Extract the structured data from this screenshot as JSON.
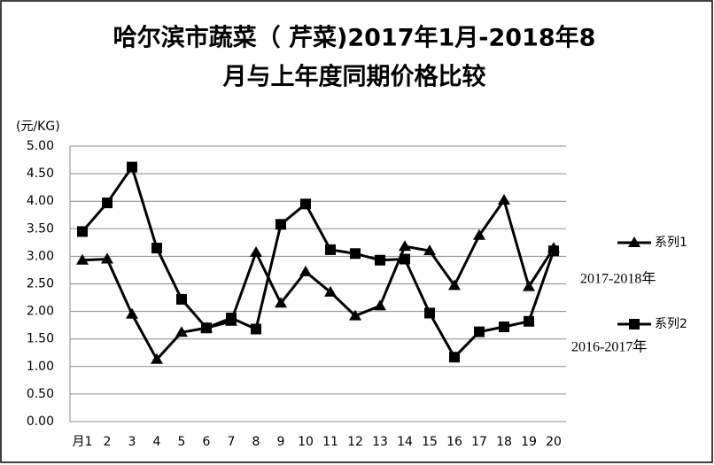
{
  "chart_data": {
    "type": "line",
    "title_lines": [
      "哈尔滨市蔬菜（ 芹菜)2017年1月-2018年8",
      "月与上年度同期价格比较"
    ],
    "y_label": "(元/KG)",
    "categories": [
      "月1",
      "2",
      "3",
      "4",
      "5",
      "6",
      "7",
      "8",
      "9",
      "10",
      "11",
      "12",
      "13",
      "14",
      "15",
      "16",
      "17",
      "18",
      "19",
      "20"
    ],
    "series": [
      {
        "name": "系列1",
        "color": "#000000",
        "marker": "triangle",
        "values": [
          2.93,
          2.95,
          1.95,
          1.13,
          1.62,
          1.7,
          1.82,
          3.07,
          2.15,
          2.72,
          2.35,
          1.92,
          2.1,
          3.18,
          3.1,
          2.47,
          3.38,
          4.02,
          2.45,
          3.15
        ]
      },
      {
        "name": "系列2",
        "color": "#000000",
        "marker": "square",
        "values": [
          3.45,
          3.97,
          4.62,
          3.15,
          2.22,
          1.7,
          1.88,
          1.68,
          3.58,
          3.95,
          3.12,
          3.05,
          2.93,
          2.95,
          1.97,
          1.17,
          1.63,
          1.72,
          1.82,
          3.1
        ]
      }
    ],
    "annotations": [
      "2017-2018年",
      "2016-2017年"
    ],
    "ylim": [
      0,
      5
    ],
    "yticks": [
      {
        "value": 0,
        "label": "0.00"
      },
      {
        "value": 0.5,
        "label": "0.50"
      },
      {
        "value": 1,
        "label": "1.00"
      },
      {
        "value": 1.5,
        "label": "1.50"
      },
      {
        "value": 2,
        "label": "2.00"
      },
      {
        "value": 2.5,
        "label": "2.50"
      },
      {
        "value": 3,
        "label": "3.00"
      },
      {
        "value": 3.5,
        "label": "3.50"
      },
      {
        "value": 4,
        "label": "4.00"
      },
      {
        "value": 4.5,
        "label": "4.50"
      },
      {
        "value": 5,
        "label": "5.00"
      }
    ],
    "grid": true,
    "legend": "right"
  }
}
